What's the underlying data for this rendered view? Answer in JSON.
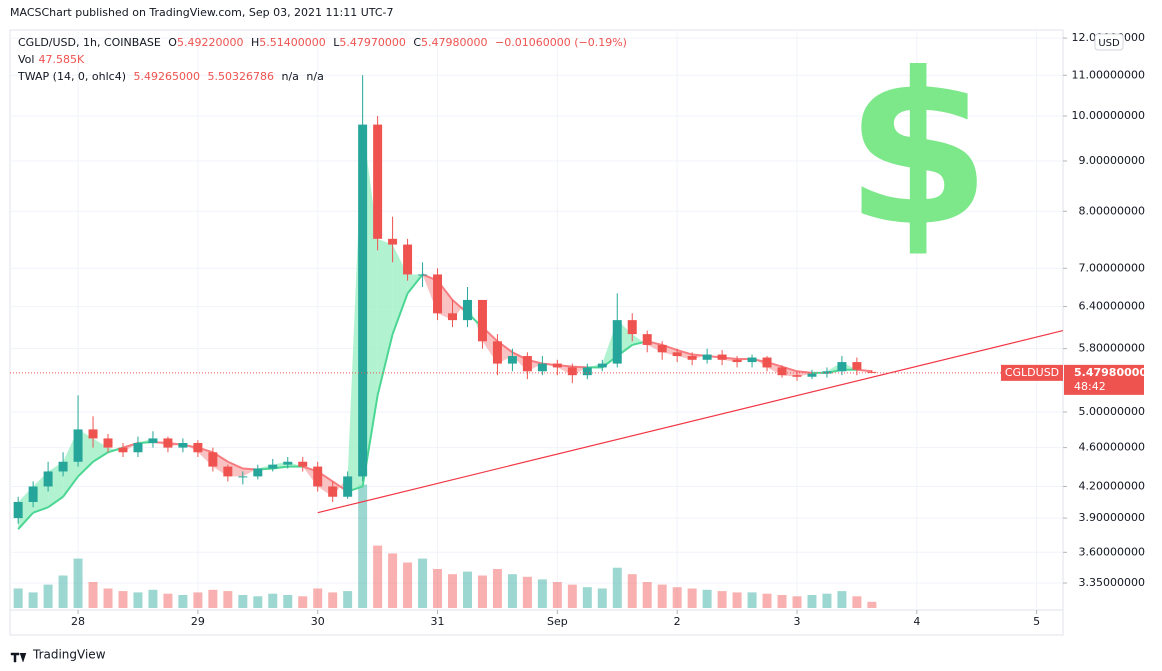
{
  "header": {
    "published": "MACSChart published on TradingView.com, Sep 03, 2021 11:11 UTC-7"
  },
  "legend": {
    "symbol": "CGLD/USD, 1h, COINBASE",
    "o_label": "O",
    "open": "5.49220000",
    "h_label": "H",
    "high": "5.51400000",
    "l_label": "L",
    "low": "5.47970000",
    "c_label": "C",
    "close": "5.47980000",
    "change": "−0.01060000 (−0.19%)",
    "vol_label": "Vol",
    "volume": "47.585K",
    "twap_label": "TWAP (14, 0, ohlc4)",
    "twap_1": "5.49265000",
    "twap_2": "5.50326786",
    "twap_3": "n/a",
    "twap_4": "n/a"
  },
  "price_tag": {
    "symbol": "CGLDUSD",
    "price": "5.47980000",
    "countdown": "48:42"
  },
  "currency_button": "USD",
  "sticker": "$",
  "footer": "TradingView",
  "chart_data": {
    "type": "candlestick",
    "log_scale": true,
    "x": [
      -0.5,
      -0.375,
      -0.25,
      -0.125,
      0,
      0.125,
      0.25,
      0.375,
      0.5,
      0.625,
      0.75,
      0.875,
      1,
      1.125,
      1.25,
      1.375,
      1.5,
      1.625,
      1.75,
      1.875,
      2,
      2.125,
      2.25,
      2.375,
      2.5,
      2.625,
      2.75,
      2.875,
      3,
      3.125,
      3.25,
      3.375,
      3.5,
      3.625,
      3.75,
      3.875,
      4,
      4.125,
      4.25,
      4.375,
      4.5,
      4.625,
      4.75,
      4.875,
      5,
      5.125,
      5.25,
      5.375,
      5.5,
      5.625,
      5.75,
      5.875,
      6,
      6.125,
      6.25,
      6.375,
      6.5,
      6.625
    ],
    "open": [
      3.9,
      4.05,
      4.2,
      4.35,
      4.45,
      4.8,
      4.7,
      4.6,
      4.55,
      4.65,
      4.7,
      4.6,
      4.65,
      4.55,
      4.4,
      4.3,
      4.3,
      4.38,
      4.42,
      4.45,
      4.4,
      4.2,
      4.1,
      4.3,
      9.8,
      7.5,
      7.4,
      6.9,
      6.9,
      6.3,
      6.2,
      6.5,
      5.9,
      5.6,
      5.7,
      5.5,
      5.6,
      5.55,
      5.45,
      5.55,
      5.6,
      6.2,
      6.0,
      5.85,
      5.75,
      5.7,
      5.65,
      5.72,
      5.65,
      5.62,
      5.68,
      5.55,
      5.45,
      5.43,
      5.47,
      5.5,
      5.62,
      5.4922
    ],
    "high": [
      4.1,
      4.25,
      4.45,
      4.55,
      5.2,
      4.95,
      4.75,
      4.65,
      4.72,
      4.78,
      4.72,
      4.7,
      4.68,
      4.6,
      4.42,
      4.35,
      4.42,
      4.48,
      4.5,
      4.5,
      4.45,
      4.25,
      4.35,
      11.0,
      10.0,
      7.9,
      7.5,
      7.1,
      7.0,
      6.5,
      6.7,
      6.5,
      6.0,
      5.8,
      5.75,
      5.7,
      5.65,
      5.6,
      5.6,
      5.65,
      6.6,
      6.3,
      6.05,
      5.9,
      5.8,
      5.75,
      5.8,
      5.78,
      5.7,
      5.72,
      5.7,
      5.58,
      5.5,
      5.52,
      5.55,
      5.7,
      5.68,
      5.514
    ],
    "low": [
      3.85,
      4.0,
      4.15,
      4.3,
      4.4,
      4.6,
      4.55,
      4.5,
      4.5,
      4.6,
      4.55,
      4.55,
      4.5,
      4.35,
      4.25,
      4.22,
      4.27,
      4.35,
      4.38,
      4.35,
      4.15,
      4.05,
      4.08,
      4.25,
      7.3,
      7.1,
      6.8,
      6.7,
      6.2,
      6.1,
      6.1,
      5.8,
      5.45,
      5.5,
      5.4,
      5.45,
      5.45,
      5.35,
      5.4,
      5.5,
      5.55,
      5.9,
      5.75,
      5.65,
      5.62,
      5.58,
      5.6,
      5.58,
      5.55,
      5.55,
      5.5,
      5.42,
      5.38,
      5.4,
      5.42,
      5.45,
      5.45,
      5.4797
    ],
    "close": [
      4.05,
      4.2,
      4.35,
      4.45,
      4.8,
      4.7,
      4.6,
      4.55,
      4.65,
      4.7,
      4.6,
      4.65,
      4.55,
      4.4,
      4.3,
      4.3,
      4.38,
      4.42,
      4.45,
      4.4,
      4.2,
      4.1,
      4.3,
      9.8,
      7.5,
      7.4,
      6.9,
      6.9,
      6.3,
      6.2,
      6.5,
      5.9,
      5.6,
      5.7,
      5.5,
      5.6,
      5.55,
      5.45,
      5.55,
      5.6,
      6.2,
      6.0,
      5.85,
      5.75,
      5.7,
      5.65,
      5.72,
      5.65,
      5.62,
      5.68,
      5.55,
      5.45,
      5.43,
      5.47,
      5.5,
      5.62,
      5.52,
      5.4798
    ],
    "volume": [
      150,
      120,
      180,
      250,
      380,
      200,
      150,
      130,
      120,
      140,
      110,
      100,
      120,
      140,
      130,
      100,
      90,
      110,
      100,
      90,
      150,
      120,
      130,
      950,
      480,
      420,
      350,
      380,
      300,
      260,
      280,
      250,
      300,
      260,
      240,
      220,
      200,
      180,
      160,
      150,
      310,
      260,
      200,
      180,
      160,
      150,
      140,
      130,
      120,
      120,
      110,
      100,
      90,
      100,
      110,
      130,
      90,
      47.585
    ],
    "vlim": [
      0,
      1000
    ],
    "twap": [
      3.8,
      3.95,
      4.0,
      4.1,
      4.3,
      4.45,
      4.55,
      4.6,
      4.65,
      4.66,
      4.65,
      4.63,
      4.6,
      4.55,
      4.45,
      4.38,
      4.37,
      4.38,
      4.4,
      4.4,
      4.35,
      4.25,
      4.15,
      4.2,
      5.2,
      6.0,
      6.6,
      6.9,
      6.8,
      6.5,
      6.3,
      6.1,
      5.9,
      5.75,
      5.65,
      5.6,
      5.58,
      5.56,
      5.55,
      5.55,
      5.7,
      5.85,
      5.9,
      5.85,
      5.78,
      5.72,
      5.7,
      5.68,
      5.66,
      5.66,
      5.62,
      5.56,
      5.5,
      5.48,
      5.48,
      5.52,
      5.52,
      5.5
    ],
    "up_color": "#26a69a",
    "down_color": "#ef5350",
    "twap_up_fill": "#9ef0c6",
    "twap_down_fill": "#f9b4b4",
    "twap_up_line": "#4cd694",
    "twap_down_line": "#f77c80",
    "last_price": 5.4798,
    "trendline": {
      "x": [
        2.0,
        8.22
      ],
      "y": [
        3.95,
        6.05
      ],
      "color": "#f23645"
    },
    "xlim": [
      -0.568,
      8.22
    ],
    "xticks": [
      {
        "value": 0,
        "label": "28"
      },
      {
        "value": 1,
        "label": "29"
      },
      {
        "value": 2,
        "label": "30"
      },
      {
        "value": 3,
        "label": "31"
      },
      {
        "value": 4,
        "label": "Sep"
      },
      {
        "value": 5,
        "label": "2"
      },
      {
        "value": 6,
        "label": "3"
      },
      {
        "value": 7,
        "label": "4"
      },
      {
        "value": 8,
        "label": "5"
      }
    ],
    "ylim": [
      3.145,
      12.23
    ],
    "yticks": [
      {
        "value": 12,
        "label": "12.00000000"
      },
      {
        "value": 11,
        "label": "11.00000000"
      },
      {
        "value": 10,
        "label": "10.00000000"
      },
      {
        "value": 9,
        "label": "9.00000000"
      },
      {
        "value": 8,
        "label": "8.00000000"
      },
      {
        "value": 7,
        "label": "7.00000000"
      },
      {
        "value": 6.4,
        "label": "6.40000000"
      },
      {
        "value": 5.8,
        "label": "5.80000000"
      },
      {
        "value": 5,
        "label": "5.00000000"
      },
      {
        "value": 4.6,
        "label": "4.60000000"
      },
      {
        "value": 4.2,
        "label": "4.20000000"
      },
      {
        "value": 3.9,
        "label": "3.90000000"
      },
      {
        "value": 3.6,
        "label": "3.60000000"
      },
      {
        "value": 3.35,
        "label": "3.35000000"
      }
    ]
  }
}
